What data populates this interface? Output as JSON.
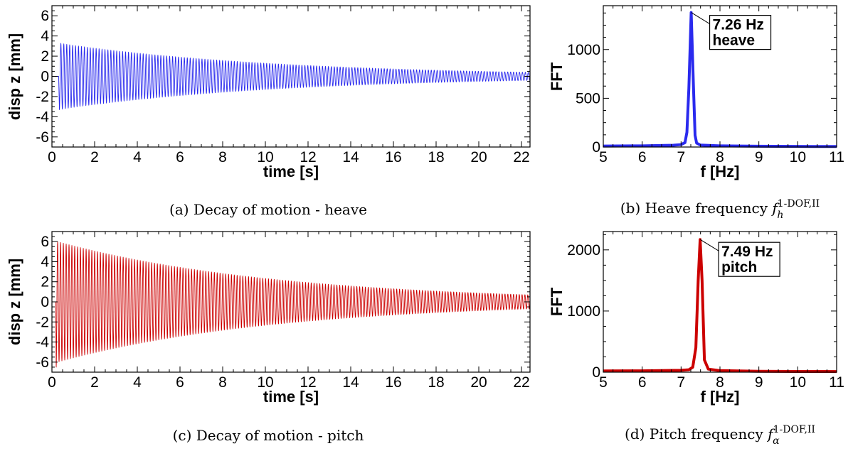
{
  "chart_data": [
    {
      "id": "a",
      "type": "line",
      "xlabel": "time [s]",
      "ylabel": "disp z [mm]",
      "xlim": [
        0,
        22.4
      ],
      "ylim": [
        -7,
        7
      ],
      "xticks": [
        0,
        2,
        4,
        6,
        8,
        10,
        12,
        14,
        16,
        18,
        20,
        22
      ],
      "yticks": [
        -6,
        -4,
        -2,
        0,
        2,
        4,
        6
      ],
      "grid": false,
      "caption": "(a) Decay of motion - heave",
      "signal": {
        "start_time": 0.35,
        "frequency_hz": 7.26,
        "peak_amplitude": 3.1,
        "peak_time": 0.9,
        "end_amplitude": 0.4,
        "end_time": 22.4,
        "initial_offset": -3.3
      },
      "series": [
        {
          "color": "#2a2aee"
        }
      ]
    },
    {
      "id": "b",
      "type": "line",
      "xlabel": "f [Hz]",
      "ylabel": "FFT",
      "xlim": [
        5,
        11
      ],
      "ylim": [
        0,
        1450
      ],
      "xticks": [
        5,
        6,
        7,
        8,
        9,
        10,
        11
      ],
      "yticks": [
        0,
        500,
        1000
      ],
      "grid": false,
      "caption": "(b) Heave frequency ",
      "caption_math": {
        "base": "f",
        "sub": "h",
        "sup": "1-DOF,II"
      },
      "annotation": {
        "x": 7.26,
        "y": 1380,
        "lines": [
          "7.26 Hz",
          "heave"
        ]
      },
      "series": [
        {
          "color": "#2a2aee",
          "x": [
            5.0,
            6.0,
            6.8,
            7.0,
            7.1,
            7.15,
            7.2,
            7.26,
            7.32,
            7.36,
            7.4,
            7.5,
            8.0,
            9.0,
            10.0,
            11.0
          ],
          "y": [
            10,
            12,
            18,
            25,
            45,
            150,
            600,
            1380,
            600,
            120,
            40,
            20,
            12,
            8,
            6,
            5
          ]
        }
      ]
    },
    {
      "id": "c",
      "type": "line",
      "xlabel": "time [s]",
      "ylabel": "disp z [mm]",
      "xlim": [
        0,
        22.4
      ],
      "ylim": [
        -7,
        7
      ],
      "xticks": [
        0,
        2,
        4,
        6,
        8,
        10,
        12,
        14,
        16,
        18,
        20,
        22
      ],
      "yticks": [
        -6,
        -4,
        -2,
        0,
        2,
        4,
        6
      ],
      "grid": false,
      "caption": "(c) Decay of motion - pitch",
      "signal": {
        "start_time": 0.2,
        "frequency_hz": 7.49,
        "peak_amplitude": 6.0,
        "peak_time": 0.25,
        "end_amplitude": 0.7,
        "end_time": 22.4,
        "initial_offset": -6.5
      },
      "series": [
        {
          "color": "#cc0000"
        }
      ]
    },
    {
      "id": "d",
      "type": "line",
      "xlabel": "f [Hz]",
      "ylabel": "FFT",
      "xlim": [
        5,
        11
      ],
      "ylim": [
        0,
        2300
      ],
      "xticks": [
        5,
        6,
        7,
        8,
        9,
        10,
        11
      ],
      "yticks": [
        0,
        1000,
        2000
      ],
      "grid": false,
      "caption": "(d) Pitch frequency ",
      "caption_math": {
        "base": "f",
        "sub": "α",
        "sup": "1-DOF,II"
      },
      "annotation": {
        "x": 7.49,
        "y": 2170,
        "lines": [
          "7.49 Hz",
          "pitch"
        ]
      },
      "series": [
        {
          "color": "#cc0000",
          "x": [
            5.0,
            6.0,
            7.0,
            7.2,
            7.3,
            7.38,
            7.44,
            7.49,
            7.54,
            7.6,
            7.7,
            8.0,
            9.0,
            10.0,
            11.0
          ],
          "y": [
            20,
            22,
            30,
            40,
            80,
            400,
            1500,
            2170,
            1500,
            200,
            50,
            25,
            15,
            12,
            10
          ]
        }
      ]
    }
  ]
}
